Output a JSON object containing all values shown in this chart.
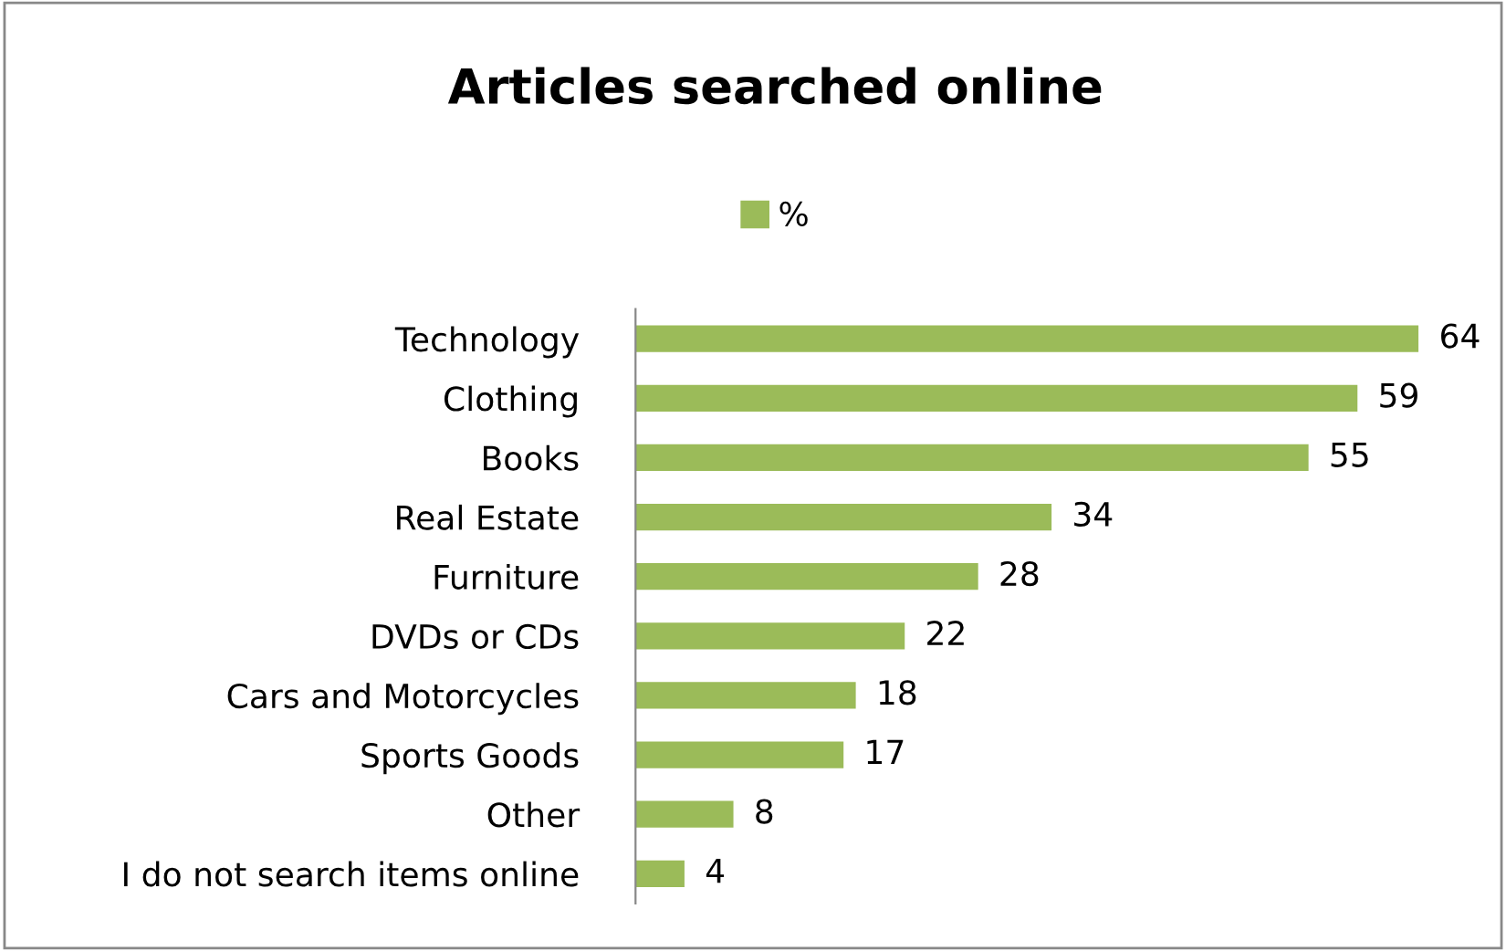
{
  "chart_data": {
    "type": "bar",
    "orientation": "horizontal",
    "title": "Articles searched online",
    "categories": [
      "Technology",
      "Clothing",
      "Books",
      "Real Estate",
      "Furniture",
      "DVDs or CDs",
      "Cars and Motorcycles",
      "Sports Goods",
      "Other",
      "I do not search items online"
    ],
    "series": [
      {
        "name": "%",
        "color": "#9bbb59",
        "values": [
          64,
          59,
          55,
          34,
          28,
          22,
          18,
          17,
          8,
          4
        ]
      }
    ],
    "data_labels": true,
    "legend": "top",
    "grid": false
  }
}
